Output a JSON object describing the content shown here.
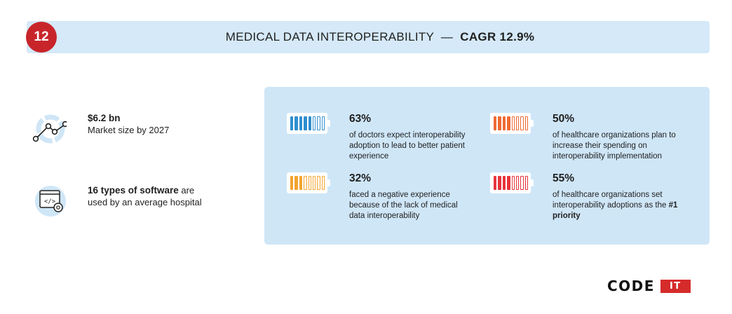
{
  "header": {
    "number": "12",
    "title": "MEDICAL DATA INTEROPERABILITY",
    "separator": "—",
    "cagr": "CAGR 12.9%"
  },
  "left_stats": [
    {
      "icon": "line-chart-icon",
      "strong": "$6.2 bn",
      "text": "Market size by 2027"
    },
    {
      "icon": "code-window-icon",
      "strong": "16 types of software",
      "text": "are used by an average hospital"
    }
  ],
  "stats": [
    {
      "percent": "63%",
      "description": "of doctors expect interoperability adoption to lead to better patient experience",
      "emphasis": "",
      "level": 0.63,
      "color": "#2f8fcf"
    },
    {
      "percent": "50%",
      "description": "of healthcare organizations plan to increase their spending on interoperability implementation",
      "emphasis": "",
      "level": 0.5,
      "color": "#f06a35"
    },
    {
      "percent": "32%",
      "description": "faced a negative experience because of the lack of medical data interoperability",
      "emphasis": "",
      "level": 0.32,
      "color": "#f3a42e"
    },
    {
      "percent": "55%",
      "description": "of healthcare organizations set interoperability adoptions as the",
      "emphasis": "#1 priority",
      "level": 0.55,
      "color": "#e8353c"
    }
  ],
  "logo": {
    "code": "CODE",
    "it": "IT"
  },
  "colors": {
    "accent": "#c8252b",
    "panel": "#cfe6f7",
    "header_bar": "#d5e9f8"
  }
}
